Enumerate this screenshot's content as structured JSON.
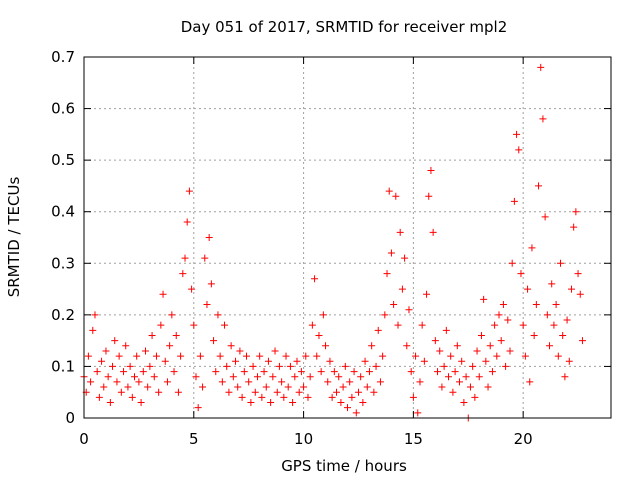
{
  "chart_data": {
    "type": "scatter",
    "title": "Day 051 of 2017, SRMTID for receiver mpl2",
    "xlabel": "GPS time / hours",
    "ylabel": "SRMTID / TECUs",
    "xlim": [
      0,
      24
    ],
    "ylim": [
      0,
      0.7
    ],
    "xticks": [
      0,
      5,
      10,
      15,
      20
    ],
    "yticks": [
      0,
      0.1,
      0.2,
      0.3,
      0.4,
      0.5,
      0.6,
      0.7
    ],
    "xtick_labels": [
      "0",
      "5",
      "10",
      "15",
      "20"
    ],
    "ytick_labels": [
      "0",
      "0.1",
      "0.2",
      "0.3",
      "0.4",
      "0.5",
      "0.6",
      "0.7"
    ],
    "grid": true,
    "marker": "+",
    "series": [
      {
        "name": "SRMTID",
        "color": "#ff0000",
        "points": [
          [
            0.0,
            0.08
          ],
          [
            0.1,
            0.05
          ],
          [
            0.2,
            0.12
          ],
          [
            0.3,
            0.07
          ],
          [
            0.4,
            0.17
          ],
          [
            0.5,
            0.2
          ],
          [
            0.6,
            0.09
          ],
          [
            0.7,
            0.04
          ],
          [
            0.8,
            0.11
          ],
          [
            0.9,
            0.06
          ],
          [
            1.0,
            0.13
          ],
          [
            1.1,
            0.08
          ],
          [
            1.2,
            0.03
          ],
          [
            1.3,
            0.1
          ],
          [
            1.4,
            0.15
          ],
          [
            1.5,
            0.07
          ],
          [
            1.6,
            0.12
          ],
          [
            1.7,
            0.05
          ],
          [
            1.8,
            0.09
          ],
          [
            1.9,
            0.14
          ],
          [
            2.0,
            0.06
          ],
          [
            2.1,
            0.1
          ],
          [
            2.2,
            0.04
          ],
          [
            2.3,
            0.08
          ],
          [
            2.4,
            0.12
          ],
          [
            2.5,
            0.07
          ],
          [
            2.6,
            0.03
          ],
          [
            2.7,
            0.09
          ],
          [
            2.8,
            0.13
          ],
          [
            2.9,
            0.06
          ],
          [
            3.0,
            0.1
          ],
          [
            3.1,
            0.16
          ],
          [
            3.2,
            0.08
          ],
          [
            3.3,
            0.12
          ],
          [
            3.4,
            0.05
          ],
          [
            3.5,
            0.18
          ],
          [
            3.6,
            0.24
          ],
          [
            3.7,
            0.11
          ],
          [
            3.8,
            0.07
          ],
          [
            3.9,
            0.14
          ],
          [
            4.0,
            0.2
          ],
          [
            4.1,
            0.09
          ],
          [
            4.2,
            0.16
          ],
          [
            4.3,
            0.05
          ],
          [
            4.4,
            0.12
          ],
          [
            4.5,
            0.28
          ],
          [
            4.6,
            0.31
          ],
          [
            4.7,
            0.38
          ],
          [
            4.8,
            0.44
          ],
          [
            4.9,
            0.25
          ],
          [
            5.0,
            0.18
          ],
          [
            5.1,
            0.08
          ],
          [
            5.2,
            0.02
          ],
          [
            5.3,
            0.12
          ],
          [
            5.4,
            0.06
          ],
          [
            5.5,
            0.31
          ],
          [
            5.6,
            0.22
          ],
          [
            5.7,
            0.35
          ],
          [
            5.8,
            0.26
          ],
          [
            5.9,
            0.15
          ],
          [
            6.0,
            0.09
          ],
          [
            6.1,
            0.2
          ],
          [
            6.2,
            0.12
          ],
          [
            6.3,
            0.07
          ],
          [
            6.4,
            0.18
          ],
          [
            6.5,
            0.1
          ],
          [
            6.6,
            0.05
          ],
          [
            6.7,
            0.14
          ],
          [
            6.8,
            0.08
          ],
          [
            6.9,
            0.11
          ],
          [
            7.0,
            0.06
          ],
          [
            7.1,
            0.13
          ],
          [
            7.2,
            0.04
          ],
          [
            7.3,
            0.09
          ],
          [
            7.4,
            0.12
          ],
          [
            7.5,
            0.07
          ],
          [
            7.6,
            0.03
          ],
          [
            7.7,
            0.1
          ],
          [
            7.8,
            0.05
          ],
          [
            7.9,
            0.08
          ],
          [
            8.0,
            0.12
          ],
          [
            8.1,
            0.04
          ],
          [
            8.2,
            0.09
          ],
          [
            8.3,
            0.06
          ],
          [
            8.4,
            0.11
          ],
          [
            8.5,
            0.03
          ],
          [
            8.6,
            0.08
          ],
          [
            8.7,
            0.13
          ],
          [
            8.8,
            0.05
          ],
          [
            8.9,
            0.1
          ],
          [
            9.0,
            0.07
          ],
          [
            9.1,
            0.04
          ],
          [
            9.2,
            0.12
          ],
          [
            9.3,
            0.06
          ],
          [
            9.4,
            0.1
          ],
          [
            9.5,
            0.03
          ],
          [
            9.6,
            0.08
          ],
          [
            9.7,
            0.11
          ],
          [
            9.8,
            0.05
          ],
          [
            9.9,
            0.09
          ],
          [
            10.0,
            0.06
          ],
          [
            10.1,
            0.12
          ],
          [
            10.2,
            0.04
          ],
          [
            10.3,
            0.08
          ],
          [
            10.4,
            0.18
          ],
          [
            10.5,
            0.27
          ],
          [
            10.6,
            0.12
          ],
          [
            10.7,
            0.16
          ],
          [
            10.8,
            0.09
          ],
          [
            10.9,
            0.2
          ],
          [
            11.0,
            0.14
          ],
          [
            11.1,
            0.07
          ],
          [
            11.2,
            0.11
          ],
          [
            11.3,
            0.04
          ],
          [
            11.4,
            0.09
          ],
          [
            11.5,
            0.05
          ],
          [
            11.6,
            0.08
          ],
          [
            11.7,
            0.03
          ],
          [
            11.8,
            0.06
          ],
          [
            11.9,
            0.1
          ],
          [
            12.0,
            0.02
          ],
          [
            12.1,
            0.07
          ],
          [
            12.2,
            0.04
          ],
          [
            12.3,
            0.09
          ],
          [
            12.4,
            0.01
          ],
          [
            12.5,
            0.05
          ],
          [
            12.6,
            0.08
          ],
          [
            12.7,
            0.03
          ],
          [
            12.8,
            0.11
          ],
          [
            12.9,
            0.06
          ],
          [
            13.0,
            0.09
          ],
          [
            13.1,
            0.14
          ],
          [
            13.2,
            0.05
          ],
          [
            13.3,
            0.1
          ],
          [
            13.4,
            0.17
          ],
          [
            13.5,
            0.07
          ],
          [
            13.6,
            0.12
          ],
          [
            13.7,
            0.2
          ],
          [
            13.8,
            0.28
          ],
          [
            13.9,
            0.44
          ],
          [
            14.0,
            0.32
          ],
          [
            14.1,
            0.22
          ],
          [
            14.2,
            0.43
          ],
          [
            14.3,
            0.18
          ],
          [
            14.4,
            0.36
          ],
          [
            14.5,
            0.25
          ],
          [
            14.6,
            0.31
          ],
          [
            14.7,
            0.14
          ],
          [
            14.8,
            0.21
          ],
          [
            14.9,
            0.09
          ],
          [
            15.0,
            0.04
          ],
          [
            15.1,
            0.12
          ],
          [
            15.2,
            0.01
          ],
          [
            15.3,
            0.07
          ],
          [
            15.4,
            0.18
          ],
          [
            15.5,
            0.11
          ],
          [
            15.6,
            0.24
          ],
          [
            15.7,
            0.43
          ],
          [
            15.8,
            0.48
          ],
          [
            15.9,
            0.36
          ],
          [
            16.0,
            0.15
          ],
          [
            16.1,
            0.09
          ],
          [
            16.2,
            0.13
          ],
          [
            16.3,
            0.06
          ],
          [
            16.4,
            0.1
          ],
          [
            16.5,
            0.17
          ],
          [
            16.6,
            0.08
          ],
          [
            16.7,
            0.12
          ],
          [
            16.8,
            0.05
          ],
          [
            16.9,
            0.09
          ],
          [
            17.0,
            0.14
          ],
          [
            17.1,
            0.07
          ],
          [
            17.2,
            0.11
          ],
          [
            17.3,
            0.03
          ],
          [
            17.4,
            0.08
          ],
          [
            17.5,
            0.0
          ],
          [
            17.6,
            0.06
          ],
          [
            17.7,
            0.1
          ],
          [
            17.8,
            0.04
          ],
          [
            17.9,
            0.13
          ],
          [
            18.0,
            0.08
          ],
          [
            18.1,
            0.16
          ],
          [
            18.2,
            0.23
          ],
          [
            18.3,
            0.11
          ],
          [
            18.4,
            0.06
          ],
          [
            18.5,
            0.14
          ],
          [
            18.6,
            0.09
          ],
          [
            18.7,
            0.18
          ],
          [
            18.8,
            0.12
          ],
          [
            18.9,
            0.2
          ],
          [
            19.0,
            0.15
          ],
          [
            19.1,
            0.22
          ],
          [
            19.2,
            0.1
          ],
          [
            19.3,
            0.19
          ],
          [
            19.4,
            0.13
          ],
          [
            19.5,
            0.3
          ],
          [
            19.6,
            0.42
          ],
          [
            19.7,
            0.55
          ],
          [
            19.8,
            0.52
          ],
          [
            19.9,
            0.28
          ],
          [
            20.0,
            0.18
          ],
          [
            20.1,
            0.12
          ],
          [
            20.2,
            0.25
          ],
          [
            20.3,
            0.07
          ],
          [
            20.4,
            0.33
          ],
          [
            20.5,
            0.16
          ],
          [
            20.6,
            0.22
          ],
          [
            20.7,
            0.45
          ],
          [
            20.8,
            0.68
          ],
          [
            20.9,
            0.58
          ],
          [
            21.0,
            0.39
          ],
          [
            21.1,
            0.2
          ],
          [
            21.2,
            0.14
          ],
          [
            21.3,
            0.26
          ],
          [
            21.4,
            0.18
          ],
          [
            21.5,
            0.22
          ],
          [
            21.6,
            0.12
          ],
          [
            21.7,
            0.3
          ],
          [
            21.8,
            0.16
          ],
          [
            21.9,
            0.08
          ],
          [
            22.0,
            0.19
          ],
          [
            22.1,
            0.11
          ],
          [
            22.2,
            0.25
          ],
          [
            22.3,
            0.37
          ],
          [
            22.4,
            0.4
          ],
          [
            22.5,
            0.28
          ],
          [
            22.6,
            0.24
          ],
          [
            22.7,
            0.15
          ]
        ]
      }
    ]
  }
}
